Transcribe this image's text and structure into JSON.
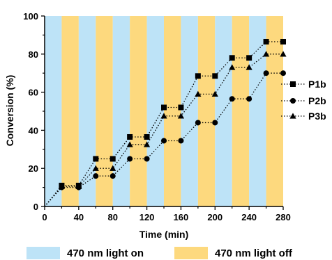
{
  "chart_data": {
    "type": "line",
    "xlabel": "Time (min)",
    "ylabel": "Conversion (%)",
    "xlim": [
      0,
      280
    ],
    "ylim": [
      0,
      100
    ],
    "x_ticks": [
      "0",
      "40",
      "80",
      "120",
      "160",
      "200",
      "240",
      "280"
    ],
    "y_ticks": [
      "0",
      "20",
      "40",
      "60",
      "80",
      "100"
    ],
    "grid": false,
    "legend_position": "right",
    "line_style": "dotted, step",
    "background_bands": {
      "interval_min": 20,
      "pattern": [
        "light on",
        "light off"
      ],
      "items": [
        {
          "label": "470 nm light on",
          "color": "#bde3f7"
        },
        {
          "label": "470 nm light off",
          "color": "#fdd97e"
        }
      ]
    },
    "series": [
      {
        "name": "P1b",
        "marker": "square",
        "x": [
          20,
          40,
          60,
          80,
          100,
          120,
          140,
          160,
          180,
          200,
          220,
          240,
          260,
          280
        ],
        "y": [
          11,
          11,
          25,
          25,
          36.5,
          36.5,
          52,
          52,
          68.5,
          68.5,
          78,
          78,
          86.5,
          86.5
        ]
      },
      {
        "name": "P2b",
        "marker": "circle",
        "x": [
          20,
          40,
          60,
          80,
          100,
          120,
          140,
          160,
          180,
          200,
          220,
          240,
          260,
          280
        ],
        "y": [
          10,
          10,
          16,
          16,
          25,
          25,
          34.5,
          34.5,
          44,
          44,
          56.5,
          56.5,
          70,
          70
        ]
      },
      {
        "name": "P3b",
        "marker": "triangle",
        "x": [
          20,
          40,
          60,
          80,
          100,
          120,
          140,
          160,
          180,
          200,
          220,
          240,
          260,
          280
        ],
        "y": [
          10.5,
          10.5,
          20,
          20,
          32.5,
          32.5,
          47.5,
          47.5,
          59,
          59,
          73,
          73,
          80,
          80
        ]
      }
    ]
  }
}
